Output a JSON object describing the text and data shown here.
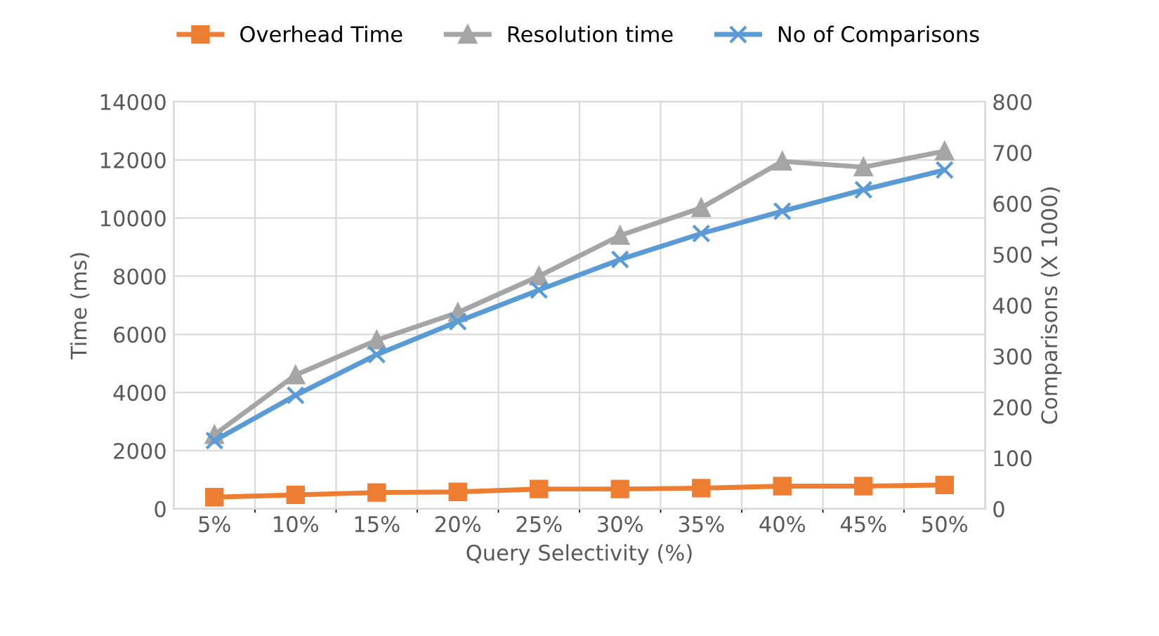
{
  "chart_data": {
    "type": "line",
    "xlabel": "Query Selectivity (%)",
    "ylabel": "Time (ms)",
    "y2label": "Comparisons (X 1000)",
    "categories": [
      "5%",
      "10%",
      "15%",
      "20%",
      "25%",
      "30%",
      "35%",
      "40%",
      "45%",
      "50%"
    ],
    "series": [
      {
        "name": "Overhead Time",
        "color": "#ed7d31",
        "marker": "square",
        "values": [
          400,
          480,
          560,
          580,
          680,
          680,
          710,
          780,
          780,
          820
        ]
      },
      {
        "name": "Resolution time",
        "color": "#a5a5a5",
        "marker": "triangle",
        "values": [
          2550,
          4600,
          5800,
          6750,
          8000,
          9400,
          10350,
          11950,
          11750,
          12300
        ]
      },
      {
        "name": "No of Comparisons",
        "color": "#5b9bd5",
        "marker": "cross",
        "axis": "y2",
        "values": [
          134,
          223,
          303,
          368,
          430,
          490,
          541,
          585,
          627,
          666
        ]
      }
    ],
    "ylim": [
      0,
      14000
    ],
    "yticks": [
      0,
      2000,
      4000,
      6000,
      8000,
      10000,
      12000,
      14000
    ],
    "y2lim": [
      0,
      800
    ],
    "y2ticks": [
      0,
      100,
      200,
      300,
      400,
      500,
      600,
      700,
      800
    ],
    "grid": true,
    "legend": "top"
  }
}
